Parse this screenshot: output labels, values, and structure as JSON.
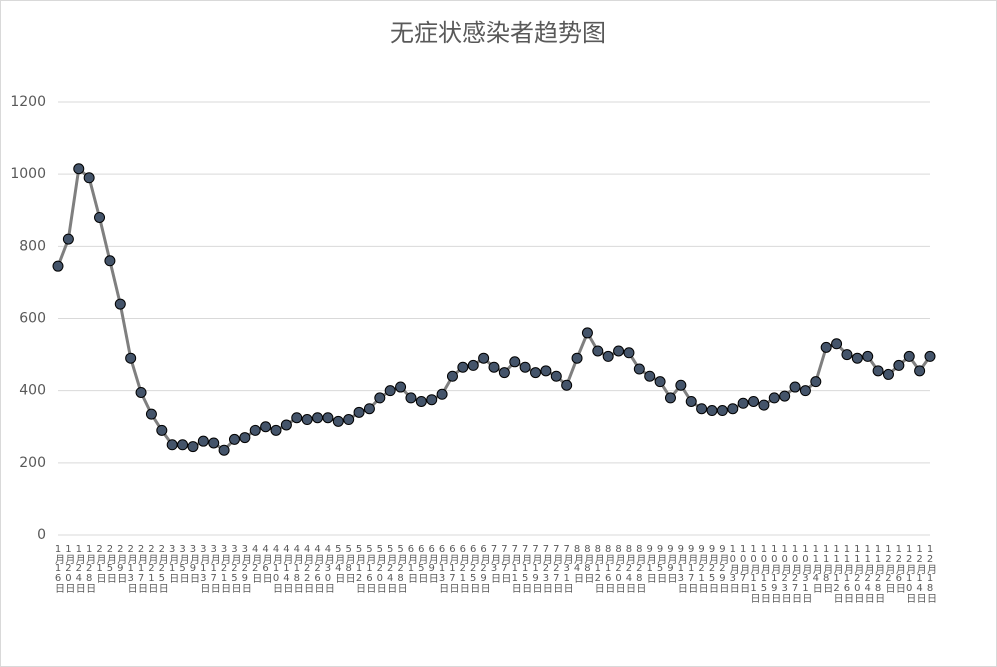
{
  "chart_data": {
    "type": "line",
    "title": "无症状感染者趋势图",
    "categories": [
      "1月16日",
      "1月20日",
      "1月24日",
      "1月28日",
      "2月1日",
      "2月5日",
      "2月9日",
      "2月13日",
      "2月17日",
      "2月21日",
      "2月25日",
      "3月1日",
      "3月5日",
      "3月9日",
      "3月13日",
      "3月17日",
      "3月21日",
      "3月25日",
      "3月29日",
      "4月2日",
      "4月6日",
      "4月10日",
      "4月14日",
      "4月18日",
      "4月22日",
      "4月26日",
      "4月30日",
      "5月4日",
      "5月8日",
      "5月12日",
      "5月16日",
      "5月20日",
      "5月24日",
      "5月28日",
      "6月1日",
      "6月5日",
      "6月9日",
      "6月13日",
      "6月17日",
      "6月21日",
      "6月25日",
      "6月29日",
      "7月3日",
      "7月7日",
      "7月11日",
      "7月15日",
      "7月19日",
      "7月23日",
      "7月27日",
      "7月31日",
      "8月4日",
      "8月8日",
      "8月12日",
      "8月16日",
      "8月20日",
      "8月24日",
      "8月28日",
      "9月1日",
      "9月5日",
      "9月9日",
      "9月13日",
      "9月17日",
      "9月21日",
      "9月25日",
      "9月29日",
      "10月3日",
      "10月7日",
      "10月11日",
      "10月15日",
      "10月19日",
      "10月23日",
      "10月27日",
      "10月31日",
      "11月4日",
      "11月8日",
      "11月12日",
      "11月16日",
      "11月20日",
      "11月24日",
      "11月28日",
      "12月2日",
      "12月6日",
      "12月10日",
      "12月14日",
      "12月18日"
    ],
    "values": [
      745,
      820,
      1015,
      990,
      880,
      760,
      640,
      490,
      395,
      335,
      290,
      250,
      250,
      245,
      260,
      255,
      235,
      265,
      270,
      290,
      300,
      290,
      305,
      325,
      320,
      325,
      325,
      315,
      320,
      340,
      350,
      380,
      400,
      410,
      380,
      370,
      375,
      390,
      440,
      465,
      470,
      490,
      465,
      450,
      480,
      465,
      450,
      455,
      440,
      415,
      490,
      560,
      510,
      495,
      510,
      505,
      460,
      440,
      425,
      380,
      415,
      370,
      350,
      345,
      345,
      350,
      365,
      370,
      360,
      380,
      385,
      410,
      400,
      425,
      520,
      530,
      500,
      490,
      495,
      455,
      445,
      470,
      495,
      455,
      495
    ],
    "line_color": "#7f7f7f",
    "marker_color": "#44546a",
    "ylim": [
      0,
      1200
    ],
    "yticks": [
      0,
      200,
      400,
      600,
      800,
      1000,
      1200
    ],
    "grid": true
  }
}
